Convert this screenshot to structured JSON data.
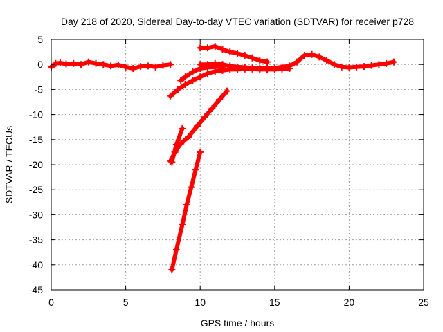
{
  "chart_data": {
    "type": "scatter",
    "title": "Day 218 of 2020, Sidereal Day-to-day VTEC variation (SDTVAR) for receiver p728",
    "xlabel": "GPS time / hours",
    "ylabel": "SDTVAR / TECUs",
    "xlim": [
      0,
      25
    ],
    "ylim": [
      -45,
      5
    ],
    "xticks": [
      0,
      5,
      10,
      15,
      20,
      25
    ],
    "yticks": [
      5,
      0,
      -5,
      -10,
      -15,
      -20,
      -25,
      -30,
      -35,
      -40,
      -45
    ],
    "grid": true,
    "marker": "plus",
    "color": "#ff0000",
    "series": [
      {
        "x": [
          0,
          0.3,
          0.6,
          1.0,
          1.5,
          2.0,
          2.5,
          3.0,
          3.5,
          4.0,
          4.5,
          5.0,
          5.5,
          6.0,
          6.5,
          7.0,
          7.5,
          8.0
        ],
        "y": [
          -0.5,
          0.2,
          0.3,
          0.1,
          0.2,
          0.0,
          0.5,
          0.2,
          0.0,
          -0.3,
          -0.1,
          -0.5,
          -0.8,
          -0.4,
          -0.3,
          -0.5,
          -0.2,
          0.0
        ]
      },
      {
        "x": [
          10.0,
          10.5,
          11.0,
          11.5,
          12.0,
          12.5,
          13.0,
          13.5,
          14.0,
          14.5
        ],
        "y": [
          3.3,
          3.3,
          3.6,
          3.0,
          2.5,
          2.2,
          1.8,
          1.3,
          0.8,
          0.5
        ]
      },
      {
        "x": [
          10.0,
          10.5,
          11.0,
          11.5,
          12.0,
          12.5,
          13.0,
          13.5,
          14.0,
          14.5,
          15.0,
          15.5,
          16.0,
          16.5,
          17.0,
          17.5,
          18.0,
          18.5,
          19.0,
          19.5,
          20.0,
          20.5,
          21.0,
          21.5,
          22.0,
          22.5,
          23.0
        ],
        "y": [
          0.0,
          0.0,
          0.2,
          0.0,
          -0.3,
          -0.5,
          -0.6,
          -0.7,
          -0.8,
          -0.8,
          -0.7,
          -0.5,
          -0.3,
          0.5,
          1.8,
          2.0,
          1.5,
          0.8,
          0.0,
          -0.5,
          -0.6,
          -0.5,
          -0.4,
          -0.2,
          0.0,
          0.2,
          0.5
        ]
      },
      {
        "x": [
          8.0,
          8.5,
          9.0,
          9.5,
          10.0,
          10.5,
          11.0,
          11.5,
          12.0,
          12.5,
          13.0,
          13.5,
          14.0,
          14.5,
          15.0,
          15.5,
          16.0
        ],
        "y": [
          -6.3,
          -5.0,
          -4.0,
          -3.2,
          -2.5,
          -1.8,
          -1.4,
          -1.2,
          -1.0,
          -1.0,
          -0.9,
          -0.9,
          -1.0,
          -1.0,
          -1.0,
          -0.9,
          -0.8
        ]
      },
      {
        "x": [
          8.7,
          9.0,
          9.5,
          10.0,
          10.5,
          11.0,
          11.5
        ],
        "y": [
          -3.2,
          -2.5,
          -1.5,
          -0.8,
          -0.6,
          -0.5,
          -0.5
        ]
      },
      {
        "x": [
          8.0,
          8.3,
          8.7,
          9.2,
          9.8,
          10.3,
          10.8,
          11.3,
          11.8
        ],
        "y": [
          -19.3,
          -17.5,
          -15.8,
          -14.5,
          -12.3,
          -10.5,
          -8.8,
          -7.0,
          -5.3
        ]
      },
      {
        "x": [
          8.1,
          8.4,
          8.8
        ],
        "y": [
          -19.5,
          -16.0,
          -12.8
        ]
      },
      {
        "x": [
          8.1,
          8.4,
          8.8,
          9.1,
          9.4,
          9.7,
          10.0
        ],
        "y": [
          -41.0,
          -37.0,
          -32.0,
          -28.0,
          -24.5,
          -21.0,
          -17.5
        ]
      }
    ]
  }
}
